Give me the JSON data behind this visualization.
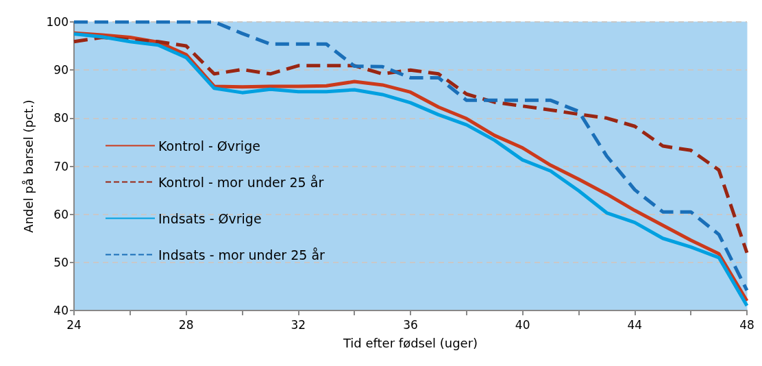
{
  "chart_data": {
    "type": "line",
    "xlabel": "Tid efter fødsel (uger)",
    "ylabel": "Andel på barsel (pct.)",
    "x": [
      24,
      25,
      26,
      27,
      28,
      29,
      30,
      31,
      32,
      33,
      34,
      35,
      36,
      37,
      38,
      39,
      40,
      41,
      42,
      43,
      44,
      45,
      46,
      47,
      48
    ],
    "series": [
      {
        "name": "Kontrol - Øvrige",
        "color": "#cc3a1c",
        "line_style": "solid",
        "values": [
          97.7,
          97.3,
          96.8,
          95.8,
          93.2,
          86.6,
          86.5,
          86.6,
          86.6,
          86.7,
          87.6,
          86.9,
          85.4,
          82.3,
          79.9,
          76.4,
          73.8,
          70.2,
          67.3,
          64.2,
          60.8,
          57.7,
          54.6,
          51.8,
          42
        ]
      },
      {
        "name": "Kontrol - mor under 25 år",
        "color": "#992613",
        "line_style": "dashed",
        "values": [
          95.9,
          96.8,
          96.3,
          95.9,
          95.0,
          89.2,
          90.1,
          89.2,
          90.9,
          90.9,
          90.9,
          89.2,
          90.0,
          89.2,
          85.0,
          83.3,
          82.5,
          81.7,
          80.8,
          80.0,
          78.3,
          74.2,
          73.3,
          69.2,
          52
        ]
      },
      {
        "name": "Indsats - Øvrige",
        "color": "#00a0e0",
        "line_style": "solid",
        "values": [
          97.5,
          96.9,
          95.9,
          95.2,
          92.6,
          86.2,
          85.3,
          86.0,
          85.5,
          85.5,
          85.9,
          84.9,
          83.2,
          80.7,
          78.6,
          75.4,
          71.3,
          69.0,
          64.9,
          60.3,
          58.3,
          55.0,
          53.2,
          51.0,
          41
        ]
      },
      {
        "name": "Indsats - mor under 25 år",
        "color": "#1a6fb8",
        "line_style": "dashed",
        "values": [
          100,
          100,
          100,
          100,
          100,
          100,
          97.6,
          95.4,
          95.4,
          95.4,
          90.8,
          90.7,
          88.4,
          88.4,
          83.7,
          83.7,
          83.7,
          83.7,
          81.4,
          72.1,
          65.1,
          60.5,
          60.5,
          55.8,
          44.2
        ]
      }
    ],
    "xlim": [
      24,
      48
    ],
    "xticks": [
      24,
      {
        "value": 26,
        "label": null
      },
      28,
      {
        "value": 30,
        "label": null
      },
      32,
      {
        "value": 34,
        "label": null
      },
      36,
      {
        "value": 38,
        "label": null
      },
      40,
      {
        "value": 42,
        "label": null
      },
      44,
      {
        "value": 46,
        "label": null
      },
      48
    ],
    "ylim": [
      40,
      100
    ],
    "yticks": [
      40,
      50,
      60,
      70,
      80,
      90,
      100
    ],
    "grid": "y",
    "legend": "left",
    "marker": "none"
  }
}
